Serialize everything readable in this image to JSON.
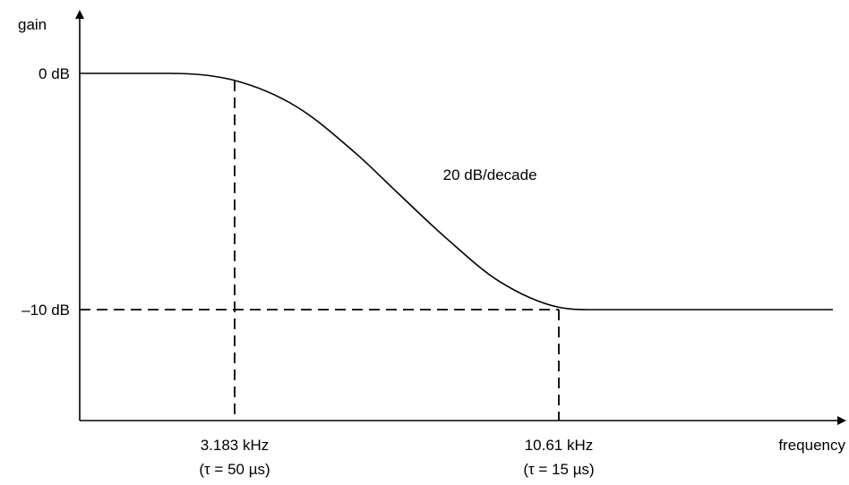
{
  "chart_data": {
    "type": "line",
    "title": "",
    "xlabel": "frequency",
    "ylabel": "gain",
    "x_scale": "log",
    "grid": false,
    "legend": "none",
    "y_ticks": [
      {
        "value": 0,
        "label": "0 dB"
      },
      {
        "value": -10,
        "label": "–10 dB"
      }
    ],
    "x_markers": [
      {
        "value_khz": 3.183,
        "label": "3.183 kHz",
        "sublabel": "(τ = 50 µs)"
      },
      {
        "value_khz": 10.61,
        "label": "10.61 kHz",
        "sublabel": "(τ = 15 µs)"
      }
    ],
    "series": [
      {
        "x_khz": [
          0.9,
          2.5,
          3.183,
          4.0,
          5.0,
          5.8,
          7.0,
          8.5,
          10.61,
          12.0,
          40.0
        ],
        "y_db": [
          0,
          0,
          -0.3,
          -1.4,
          -3.4,
          -5.0,
          -7.0,
          -8.8,
          -9.9,
          -10,
          -10
        ]
      }
    ],
    "annotations": [
      {
        "text": "20 dB/decade",
        "x_khz": 6.9,
        "y_db": -4.5
      }
    ],
    "colors": {
      "line": "#000000",
      "background": "#ffffff"
    }
  }
}
